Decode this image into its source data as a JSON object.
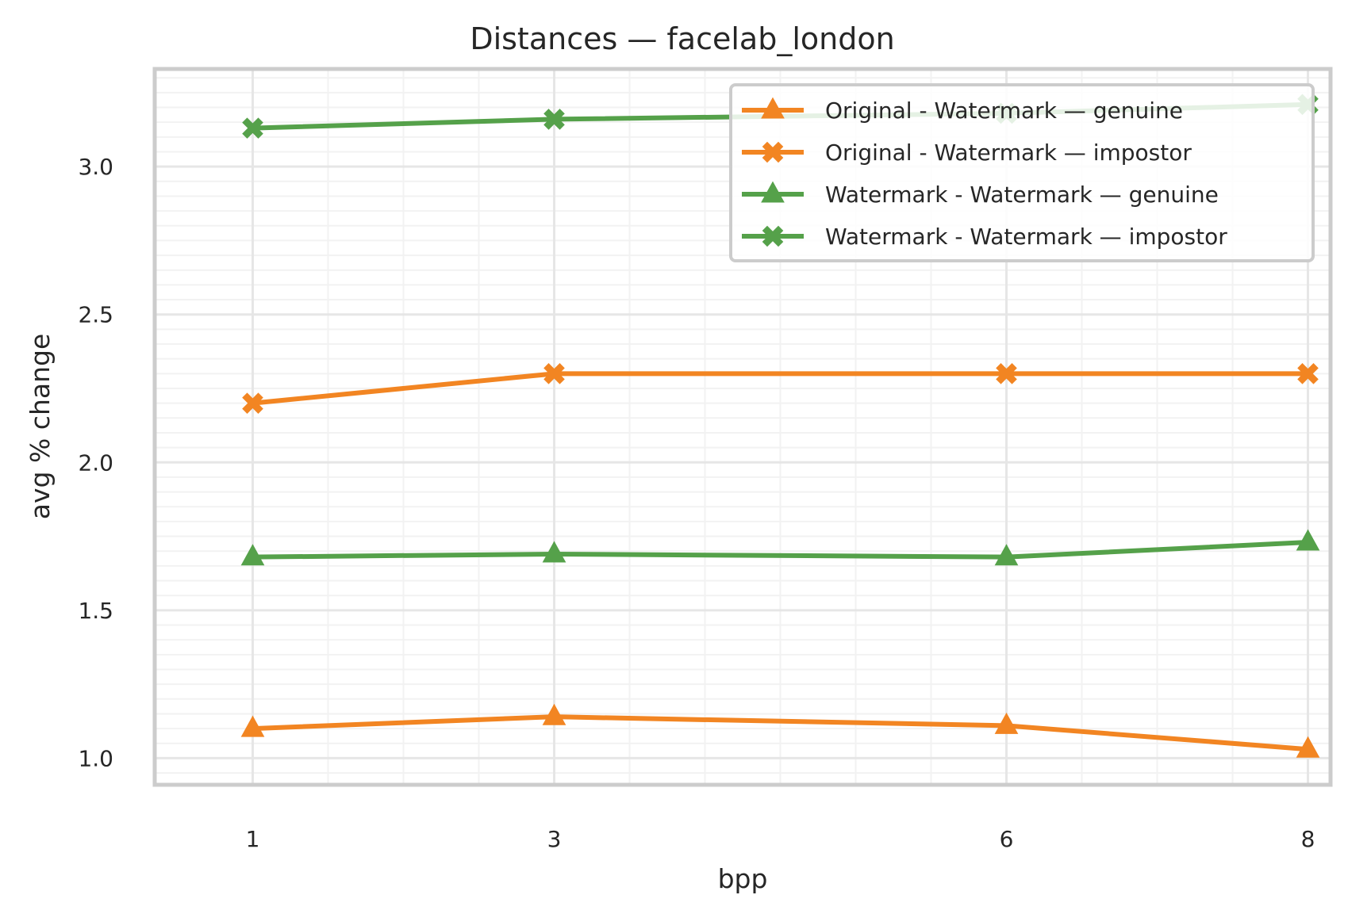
{
  "chart_data": {
    "type": "line",
    "title": "Distances — facelab_london",
    "xlabel": "bpp",
    "ylabel": "avg % change",
    "x": [
      1,
      3,
      6,
      8
    ],
    "x_tick_labels": [
      "1",
      "3",
      "6",
      "8"
    ],
    "xlim": [
      0.35,
      8.15
    ],
    "ylim": [
      0.91,
      3.33
    ],
    "y_ticks": [
      1.0,
      1.5,
      2.0,
      2.5,
      3.0
    ],
    "y_tick_labels": [
      "1.0",
      "1.5",
      "2.0",
      "2.5",
      "3.0"
    ],
    "grid": true,
    "legend_position": "top-right",
    "series": [
      {
        "name": "Original - Watermark — genuine",
        "values": [
          1.1,
          1.14,
          1.11,
          1.03
        ],
        "color": "#f28522",
        "marker": "triangle"
      },
      {
        "name": "Original - Watermark — impostor",
        "values": [
          2.2,
          2.3,
          2.3,
          2.3
        ],
        "color": "#f28522",
        "marker": "x"
      },
      {
        "name": "Watermark - Watermark — genuine",
        "values": [
          1.68,
          1.69,
          1.68,
          1.73
        ],
        "color": "#55a14a",
        "marker": "triangle"
      },
      {
        "name": "Watermark - Watermark — impostor",
        "values": [
          3.13,
          3.16,
          3.18,
          3.21
        ],
        "color": "#55a14a",
        "marker": "x"
      }
    ]
  }
}
